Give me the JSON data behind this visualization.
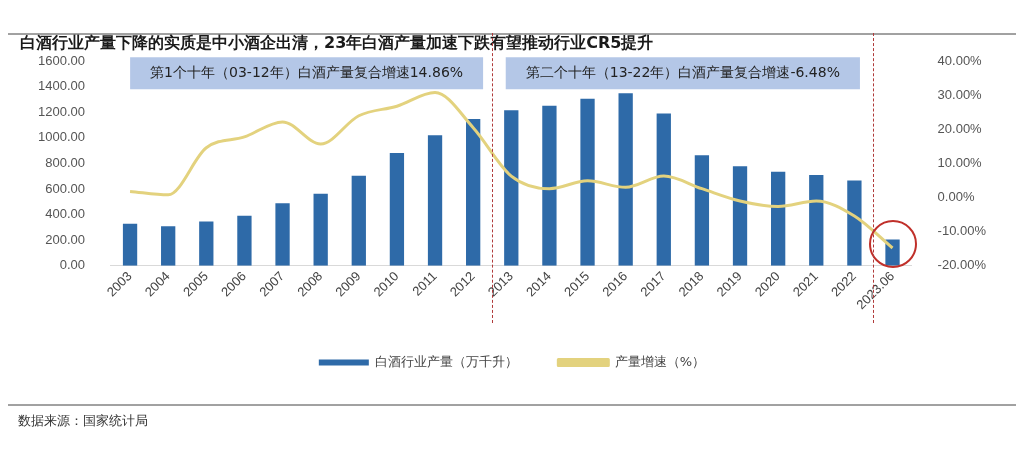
{
  "chart_data": {
    "type": "bar",
    "title": "白酒行业产量下降的实质是中小酒企出清，23年白酒产量加速下跌有望推动行业CR5提升",
    "categories": [
      "2003",
      "2004",
      "2005",
      "2006",
      "2007",
      "2008",
      "2009",
      "2010",
      "2011",
      "2012",
      "2013",
      "2014",
      "2015",
      "2016",
      "2017",
      "2018",
      "2019",
      "2020",
      "2021",
      "2022",
      "2023.06"
    ],
    "series": [
      {
        "name": "白酒行业产量（万千升）",
        "color": "#2e6aa8",
        "values": [
          328,
          308,
          347,
          392,
          488,
          564,
          703,
          882,
          1021,
          1148,
          1217,
          1251,
          1306,
          1349,
          1191,
          865,
          778,
          735,
          710,
          666,
          205
        ]
      },
      {
        "name": "产量增速（%）",
        "type": "line",
        "axis": "y2",
        "color": "#e3d27e",
        "values": [
          1.8,
          0.8,
          14.6,
          17.8,
          22.2,
          15.7,
          24,
          26.8,
          30.8,
          20.5,
          6.3,
          2.6,
          4.9,
          3.0,
          6.3,
          2.6,
          -1.0,
          -2.6,
          -1.0,
          -5.4,
          -14.8
        ]
      }
    ],
    "ylim": [
      0,
      1600
    ],
    "yticks": [
      {
        "value": 0,
        "label": "0.00"
      },
      {
        "value": 200,
        "label": "200.00"
      },
      {
        "value": 400,
        "label": "400.00"
      },
      {
        "value": 600,
        "label": "600.00"
      },
      {
        "value": 800,
        "label": "800.00"
      },
      {
        "value": 1000,
        "label": "1000.00"
      },
      {
        "value": 1200,
        "label": "1200.00"
      },
      {
        "value": 1400,
        "label": "1400.00"
      },
      {
        "value": 1600,
        "label": "1600.00"
      }
    ],
    "y2lim": [
      -20,
      40
    ],
    "y2ticks": [
      {
        "value": -20,
        "label": "-20.00%"
      },
      {
        "value": -10,
        "label": "-10.00%"
      },
      {
        "value": 0,
        "label": "0.00%"
      },
      {
        "value": 10,
        "label": "10.00%"
      },
      {
        "value": 20,
        "label": "20.00%"
      },
      {
        "value": 30,
        "label": "30.00%"
      },
      {
        "value": 40,
        "label": "40.00%"
      }
    ],
    "annotations": [
      "第1个十年（03-12年）白酒产量复合增速14.86%",
      "第二个十年（13-22年）白酒产量复合增速-6.48%",
      "数据来源：国家统计局"
    ],
    "grid": false,
    "legend": "bottom",
    "marker": "none",
    "line_style": "solid"
  }
}
